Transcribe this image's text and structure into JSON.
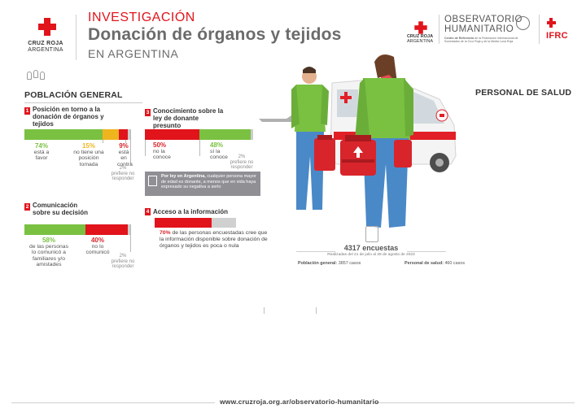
{
  "header": {
    "org_name_line1": "CRUZ ROJA",
    "org_name_line2": "ARGENTINA",
    "kicker": "INVESTIGACIÓN",
    "title": "Donación de órganos y tejidos",
    "subtitle": "EN ARGENTINA",
    "partner_small_org_line1": "CRUZ ROJA",
    "partner_small_org_line2": "ARGENTINA",
    "observatorio_line1": "OBSERVATORIO",
    "observatorio_line2": "HUMANITARIO",
    "observatorio_desc_bold": "Centro de Referencia",
    "observatorio_desc": "de la Federación Internacional de Sociedades de la Cruz Roja y de la Media Luna Roja",
    "ifrc": "IFRC"
  },
  "sections": {
    "general": "POBLACIÓN GENERAL",
    "health": "PERSONAL DE SALUD"
  },
  "q1": {
    "number": "1",
    "title": "Posición en torno a la donación de órganos y tejidos",
    "items": [
      {
        "pct": "74%",
        "label": "está a favor",
        "value": 74,
        "color": "#7ac142"
      },
      {
        "pct": "15%",
        "label": "no tiene una posición tomada",
        "value": 15,
        "color": "#efb51f"
      },
      {
        "pct": "9%",
        "label": "está en contra",
        "value": 9,
        "color": "#e1141c"
      },
      {
        "pct": "2%",
        "label": "prefiere no responder",
        "value": 2,
        "color": "#cccccc"
      }
    ]
  },
  "q2": {
    "number": "2",
    "title": "Comunicación sobre su decisión",
    "items": [
      {
        "pct": "58%",
        "label": "de las personas lo comunicó a familiares y/o amistades",
        "value": 58,
        "color": "#7ac142"
      },
      {
        "pct": "40%",
        "label": "no lo comunicó",
        "value": 40,
        "color": "#e1141c"
      },
      {
        "pct": "2%",
        "label": "prefiere no responder",
        "value": 2,
        "color": "#cccccc"
      }
    ]
  },
  "q3": {
    "number": "3",
    "title": "Conocimiento sobre la ley de donante presunto",
    "items": [
      {
        "pct": "50%",
        "label": "no la conoce",
        "value": 50,
        "color": "#e1141c"
      },
      {
        "pct": "48%",
        "label": "sí la conoce",
        "value": 48,
        "color": "#7ac142"
      },
      {
        "pct": "2%",
        "label": "prefiere no responder",
        "value": 2,
        "color": "#cccccc"
      }
    ],
    "note_bold": "Por ley en Argentina,",
    "note": "cualquier persona mayor de edad es donante, a menos que en vida haya expresado su negativa a serlo"
  },
  "q4": {
    "number": "4",
    "title": "Acceso a la información",
    "items": [
      {
        "value": 70,
        "color": "#e1141c"
      },
      {
        "value": 30,
        "color": "#d0d0d0"
      }
    ],
    "pct": "70%",
    "text": "de las personas encuestadas cree que la información disponible sobre donación de órganos y tejidos es poca o nula"
  },
  "survey": {
    "total": "4317 encuestas",
    "dates": "Realizadas del 21 de julio al 28 de agosto de 2023",
    "general_label": "Población general:",
    "general_value": "3857 casos",
    "health_label": "Personal de salud:",
    "health_value": "460 casos"
  },
  "footer": {
    "url": "www.cruzroja.org.ar/observatorio-humanitario"
  }
}
